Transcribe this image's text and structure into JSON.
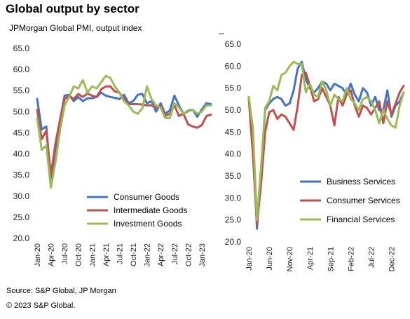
{
  "title": "Global output by sector",
  "subtitle": "JPMorgan Global PMI, output index",
  "stray_mark": "--",
  "source": "Source: S&P Global, JP Morgan",
  "copyright": "© 2023 S&P Global.",
  "colors": {
    "blue": "#4472c4",
    "red": "#c0504d",
    "green": "#9bbb59"
  },
  "chart_data": [
    {
      "type": "line",
      "title": "",
      "xlabel": "",
      "ylabel": "",
      "ylim": [
        20,
        65
      ],
      "y_ticks": [
        "20.0",
        "25.0",
        "30.0",
        "35.0",
        "40.0",
        "45.0",
        "50.0",
        "55.0",
        "60.0",
        "65.0"
      ],
      "x": [
        "Jan-20",
        "Feb-20",
        "Mar-20",
        "Apr-20",
        "May-20",
        "Jun-20",
        "Jul-20",
        "Aug-20",
        "Sep-20",
        "Oct-20",
        "Nov-20",
        "Dec-20",
        "Jan-21",
        "Feb-21",
        "Mar-21",
        "Apr-21",
        "May-21",
        "Jun-21",
        "Jul-21",
        "Aug-21",
        "Sep-21",
        "Oct-21",
        "Nov-21",
        "Dec-21",
        "Jan-22",
        "Feb-22",
        "Mar-22",
        "Apr-22",
        "May-22",
        "Jun-22",
        "Jul-22",
        "Aug-22",
        "Sep-22",
        "Oct-22",
        "Nov-22",
        "Dec-22",
        "Jan-23",
        "Feb-23",
        "Mar-23"
      ],
      "x_tick_labels": [
        "Jan-20",
        "Apr-20",
        "Jul-20",
        "Oct-20",
        "Jan-21",
        "Apr-21",
        "Jul-21",
        "Oct-21",
        "Jan-22",
        "Apr-22",
        "Jul-22",
        "Oct-22",
        "Jan-23"
      ],
      "legend_position": "bottom-right",
      "series": [
        {
          "name": "Consumer Goods",
          "color": "#4472c4",
          "values": [
            53.0,
            45.8,
            46.5,
            33.5,
            40.5,
            48.0,
            53.8,
            54.0,
            52.5,
            53.5,
            52.5,
            53.2,
            53.2,
            53.5,
            54.5,
            53.8,
            53.5,
            53.3,
            53.0,
            54.0,
            52.0,
            52.5,
            54.0,
            54.2,
            52.0,
            52.5,
            50.0,
            52.0,
            49.5,
            50.3,
            53.8,
            51.5,
            49.5,
            50.2,
            50.5,
            48.8,
            50.5,
            52.0,
            51.8
          ]
        },
        {
          "name": "Intermediate Goods",
          "color": "#c0504d",
          "values": [
            50.5,
            43.5,
            45.5,
            35.0,
            42.5,
            48.0,
            53.0,
            53.8,
            53.0,
            54.2,
            53.5,
            54.3,
            53.8,
            53.5,
            55.3,
            56.0,
            56.0,
            54.8,
            54.5,
            53.0,
            51.8,
            51.8,
            51.8,
            51.7,
            51.5,
            51.5,
            51.0,
            51.5,
            49.0,
            49.5,
            51.5,
            49.0,
            49.5,
            47.0,
            46.5,
            46.2,
            46.8,
            49.0,
            49.3
          ]
        },
        {
          "name": "Investment Goods",
          "color": "#9bbb59",
          "values": [
            48.5,
            41.0,
            42.0,
            32.0,
            38.0,
            45.5,
            51.5,
            53.5,
            56.0,
            55.5,
            57.5,
            54.5,
            56.0,
            55.5,
            57.0,
            58.5,
            58.0,
            56.0,
            54.5,
            52.5,
            51.5,
            50.0,
            49.5,
            50.8,
            56.0,
            53.0,
            51.5,
            51.0,
            48.5,
            48.5,
            52.0,
            51.0,
            49.5,
            50.0,
            50.5,
            49.5,
            50.0,
            51.5,
            51.5
          ]
        }
      ]
    },
    {
      "type": "line",
      "title": "",
      "xlabel": "",
      "ylabel": "",
      "ylim": [
        20,
        65
      ],
      "y_ticks": [
        "20.0",
        "25.0",
        "30.0",
        "35.0",
        "40.0",
        "45.0",
        "50.0",
        "55.0",
        "60.0",
        "65.0"
      ],
      "x": [
        "Jan-20",
        "Feb-20",
        "Mar-20",
        "Apr-20",
        "May-20",
        "Jun-20",
        "Jul-20",
        "Aug-20",
        "Sep-20",
        "Oct-20",
        "Nov-20",
        "Dec-20",
        "Jan-21",
        "Feb-21",
        "Mar-21",
        "Apr-21",
        "May-21",
        "Jun-21",
        "Jul-21",
        "Aug-21",
        "Sep-21",
        "Oct-21",
        "Nov-21",
        "Dec-21",
        "Jan-22",
        "Feb-22",
        "Mar-22",
        "Apr-22",
        "May-22",
        "Jun-22",
        "Jul-22",
        "Aug-22",
        "Sep-22",
        "Oct-22",
        "Nov-22",
        "Dec-22",
        "Jan-23",
        "Feb-23",
        "Mar-23"
      ],
      "x_tick_labels": [
        "Jan-20",
        "Jun-20",
        "Nov-20",
        "Apr-21",
        "Sep-21",
        "Feb-22",
        "Jul-22",
        "Dec-22"
      ],
      "legend_position": "bottom-right",
      "series": [
        {
          "name": "Business Services",
          "color": "#4472c4",
          "values": [
            53.0,
            44.0,
            23.0,
            35.0,
            50.0,
            51.5,
            52.5,
            53.0,
            52.5,
            51.0,
            51.5,
            54.5,
            59.5,
            61.0,
            57.0,
            55.0,
            54.0,
            55.0,
            56.5,
            56.0,
            54.5,
            56.0,
            55.5,
            55.0,
            53.5,
            56.0,
            53.5,
            52.0,
            55.0,
            54.0,
            51.0,
            53.0,
            50.0,
            50.0,
            54.5,
            48.5,
            51.0,
            52.0,
            54.0
          ]
        },
        {
          "name": "Consumer Services",
          "color": "#c0504d",
          "values": [
            52.5,
            40.0,
            24.0,
            33.0,
            45.0,
            49.5,
            50.0,
            48.0,
            49.0,
            48.5,
            47.0,
            45.5,
            51.0,
            58.0,
            58.5,
            55.5,
            52.0,
            52.5,
            55.0,
            53.0,
            51.0,
            46.5,
            53.0,
            51.0,
            53.5,
            54.5,
            51.0,
            48.5,
            51.0,
            50.5,
            49.0,
            50.5,
            52.0,
            47.0,
            52.0,
            49.0,
            51.5,
            54.0,
            55.5
          ]
        },
        {
          "name": "Financial Services",
          "color": "#9bbb59",
          "values": [
            53.0,
            46.0,
            25.0,
            37.0,
            50.5,
            52.0,
            55.5,
            54.5,
            58.0,
            58.5,
            60.0,
            61.0,
            60.5,
            60.5,
            54.0,
            56.0,
            53.5,
            53.0,
            56.5,
            54.5,
            51.0,
            53.5,
            52.5,
            52.0,
            55.0,
            52.5,
            51.5,
            50.0,
            52.5,
            53.0,
            52.0,
            50.0,
            47.0,
            50.0,
            48.0,
            46.5,
            46.0,
            51.0,
            54.0
          ]
        }
      ]
    }
  ]
}
